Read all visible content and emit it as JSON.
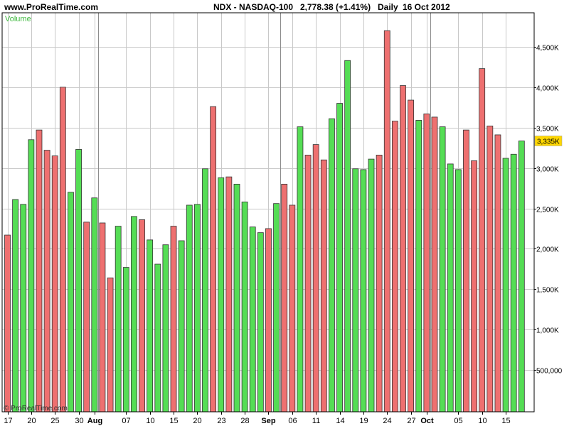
{
  "header": {
    "site": "www.ProRealTime.com",
    "symbol": "NDX - NASDAQ-100",
    "price": "2,778.38 (+1.41%)",
    "period": "Daily",
    "date": "16 Oct 2012"
  },
  "indicator_label": "Volume",
  "copyright": "© ProRealTime.com",
  "last_value_label": "3,335K",
  "colors": {
    "up": "#55dd55",
    "down": "#ee7070",
    "bar_outline": "#333333",
    "grid": "#c8c8c8",
    "month_separator": "#8c8c8c",
    "last_value_box": "#ffd700"
  },
  "chart_data": {
    "type": "bar",
    "title": "",
    "xlabel": "",
    "ylabel": "Volume",
    "ylim": [
      0,
      4800000
    ],
    "y_ticks": [
      500000,
      1000000,
      1500000,
      2000000,
      2500000,
      3000000,
      3500000,
      4000000,
      4500000
    ],
    "y_tick_labels": [
      "500,000",
      "1,000K",
      "1,500K",
      "2,000K",
      "2,500K",
      "3,000K",
      "3,500K",
      "4,000K",
      "4,500K"
    ],
    "grid": true,
    "bars": [
      {
        "value": 2170000,
        "dir": "down"
      },
      {
        "value": 2610000,
        "dir": "up"
      },
      {
        "value": 2550000,
        "dir": "up"
      },
      {
        "value": 3350000,
        "dir": "up"
      },
      {
        "value": 3470000,
        "dir": "down"
      },
      {
        "value": 3220000,
        "dir": "down"
      },
      {
        "value": 3150000,
        "dir": "down"
      },
      {
        "value": 4000000,
        "dir": "down"
      },
      {
        "value": 2700000,
        "dir": "up"
      },
      {
        "value": 3230000,
        "dir": "up"
      },
      {
        "value": 2330000,
        "dir": "down"
      },
      {
        "value": 2630000,
        "dir": "up"
      },
      {
        "value": 2320000,
        "dir": "down"
      },
      {
        "value": 1640000,
        "dir": "down"
      },
      {
        "value": 2280000,
        "dir": "up"
      },
      {
        "value": 1770000,
        "dir": "up"
      },
      {
        "value": 2400000,
        "dir": "up"
      },
      {
        "value": 2360000,
        "dir": "down"
      },
      {
        "value": 2110000,
        "dir": "up"
      },
      {
        "value": 1810000,
        "dir": "up"
      },
      {
        "value": 2050000,
        "dir": "up"
      },
      {
        "value": 2280000,
        "dir": "down"
      },
      {
        "value": 2100000,
        "dir": "up"
      },
      {
        "value": 2540000,
        "dir": "up"
      },
      {
        "value": 2550000,
        "dir": "up"
      },
      {
        "value": 2990000,
        "dir": "up"
      },
      {
        "value": 3760000,
        "dir": "down"
      },
      {
        "value": 2880000,
        "dir": "up"
      },
      {
        "value": 2890000,
        "dir": "down"
      },
      {
        "value": 2800000,
        "dir": "up"
      },
      {
        "value": 2580000,
        "dir": "up"
      },
      {
        "value": 2270000,
        "dir": "up"
      },
      {
        "value": 2200000,
        "dir": "up"
      },
      {
        "value": 2250000,
        "dir": "down"
      },
      {
        "value": 2560000,
        "dir": "up"
      },
      {
        "value": 2800000,
        "dir": "down"
      },
      {
        "value": 2540000,
        "dir": "down"
      },
      {
        "value": 3510000,
        "dir": "up"
      },
      {
        "value": 3160000,
        "dir": "down"
      },
      {
        "value": 3290000,
        "dir": "down"
      },
      {
        "value": 3100000,
        "dir": "down"
      },
      {
        "value": 3610000,
        "dir": "up"
      },
      {
        "value": 3800000,
        "dir": "up"
      },
      {
        "value": 4330000,
        "dir": "up"
      },
      {
        "value": 2990000,
        "dir": "up"
      },
      {
        "value": 2980000,
        "dir": "up"
      },
      {
        "value": 3110000,
        "dir": "up"
      },
      {
        "value": 3160000,
        "dir": "down"
      },
      {
        "value": 4700000,
        "dir": "down"
      },
      {
        "value": 3580000,
        "dir": "down"
      },
      {
        "value": 4020000,
        "dir": "down"
      },
      {
        "value": 3840000,
        "dir": "down"
      },
      {
        "value": 3590000,
        "dir": "up"
      },
      {
        "value": 3670000,
        "dir": "down"
      },
      {
        "value": 3630000,
        "dir": "down"
      },
      {
        "value": 3510000,
        "dir": "up"
      },
      {
        "value": 3050000,
        "dir": "up"
      },
      {
        "value": 2980000,
        "dir": "up"
      },
      {
        "value": 3470000,
        "dir": "down"
      },
      {
        "value": 3090000,
        "dir": "down"
      },
      {
        "value": 4230000,
        "dir": "down"
      },
      {
        "value": 3520000,
        "dir": "down"
      },
      {
        "value": 3410000,
        "dir": "down"
      },
      {
        "value": 3120000,
        "dir": "up"
      },
      {
        "value": 3170000,
        "dir": "up"
      },
      {
        "value": 3335000,
        "dir": "up"
      }
    ],
    "x_tick_labels": [
      {
        "bar": 0,
        "label": "17",
        "month": false
      },
      {
        "bar": 3,
        "label": "20",
        "month": false
      },
      {
        "bar": 6,
        "label": "25",
        "month": false
      },
      {
        "bar": 9,
        "label": "30",
        "month": false
      },
      {
        "bar": 11,
        "label": "Aug",
        "month": true
      },
      {
        "bar": 15,
        "label": "07",
        "month": false
      },
      {
        "bar": 18,
        "label": "10",
        "month": false
      },
      {
        "bar": 21,
        "label": "15",
        "month": false
      },
      {
        "bar": 24,
        "label": "20",
        "month": false
      },
      {
        "bar": 27,
        "label": "23",
        "month": false
      },
      {
        "bar": 30,
        "label": "28",
        "month": false
      },
      {
        "bar": 33,
        "label": "Sep",
        "month": true
      },
      {
        "bar": 36,
        "label": "06",
        "month": false
      },
      {
        "bar": 39,
        "label": "11",
        "month": false
      },
      {
        "bar": 42,
        "label": "14",
        "month": false
      },
      {
        "bar": 45,
        "label": "19",
        "month": false
      },
      {
        "bar": 48,
        "label": "24",
        "month": false
      },
      {
        "bar": 51,
        "label": "27",
        "month": false
      },
      {
        "bar": 53,
        "label": "Oct",
        "month": true
      },
      {
        "bar": 57,
        "label": "05",
        "month": false
      },
      {
        "bar": 60,
        "label": "10",
        "month": false
      },
      {
        "bar": 63,
        "label": "15",
        "month": false
      }
    ],
    "month_separators": [
      11.5,
      34.5,
      53.5
    ]
  }
}
